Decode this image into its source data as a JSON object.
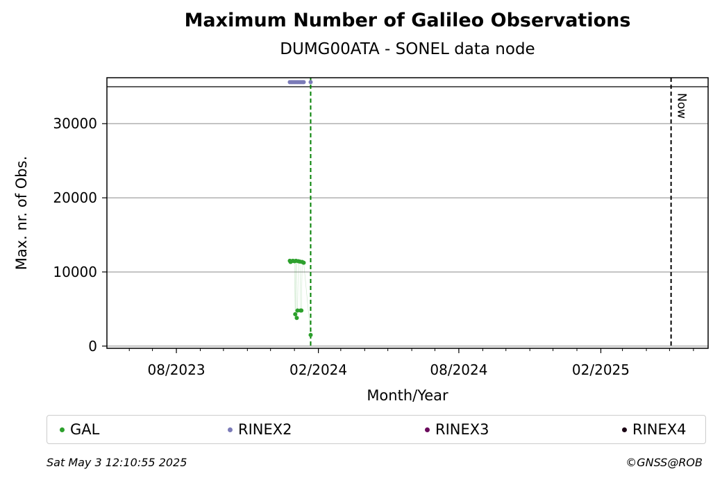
{
  "chart_data": {
    "type": "scatter",
    "title": "Maximum Number of Galileo Observations",
    "subtitle": "DUMG00ATA - SONEL data node",
    "xlabel": "Month/Year",
    "ylabel": "Max. nr. of Obs.",
    "xlim": [
      "2023-05-03",
      "2025-06-20"
    ],
    "ylim": [
      -300,
      36200
    ],
    "yticks": [
      0,
      10000,
      20000,
      30000
    ],
    "xticks": [
      {
        "date": "2023-08-01",
        "label": "08/2023"
      },
      {
        "date": "2024-02-01",
        "label": "02/2024"
      },
      {
        "date": "2024-08-01",
        "label": "08/2024"
      },
      {
        "date": "2025-02-01",
        "label": "02/2025"
      }
    ],
    "grid": "horizontal",
    "now_label": "Now",
    "now_date": "2025-05-03",
    "cutoff_date": "2024-01-22",
    "series": [
      {
        "name": "GAL",
        "color": "#2ca02c",
        "points": [
          [
            "2023-12-26",
            11500
          ],
          [
            "2023-12-27",
            11350
          ],
          [
            "2023-12-28",
            11450
          ],
          [
            "2023-12-30",
            11500
          ],
          [
            "2024-01-01",
            11450
          ],
          [
            "2024-01-02",
            4300
          ],
          [
            "2024-01-03",
            11500
          ],
          [
            "2024-01-04",
            3800
          ],
          [
            "2024-01-05",
            4800
          ],
          [
            "2024-01-06",
            11450
          ],
          [
            "2024-01-08",
            11400
          ],
          [
            "2024-01-09",
            4800
          ],
          [
            "2024-01-10",
            4800
          ],
          [
            "2024-01-11",
            11350
          ],
          [
            "2024-01-13",
            11250
          ],
          [
            "2024-01-22",
            1500
          ]
        ]
      },
      {
        "name": "RINEX2",
        "color": "#7b7bb8",
        "points": [
          [
            "2023-12-26",
            35600
          ],
          [
            "2023-12-28",
            35600
          ],
          [
            "2023-12-30",
            35600
          ],
          [
            "2024-01-01",
            35600
          ],
          [
            "2024-01-03",
            35600
          ],
          [
            "2024-01-05",
            35600
          ],
          [
            "2024-01-07",
            35600
          ],
          [
            "2024-01-09",
            35600
          ],
          [
            "2024-01-11",
            35600
          ],
          [
            "2024-01-13",
            35600
          ],
          [
            "2024-01-22",
            35600
          ]
        ]
      },
      {
        "name": "RINEX3",
        "color": "#6a0a5c",
        "points": []
      },
      {
        "name": "RINEX4",
        "color": "#1a0514",
        "points": []
      }
    ]
  },
  "footer": {
    "timestamp": "Sat May  3 12:10:55 2025",
    "copyright": "©GNSS@ROB"
  }
}
